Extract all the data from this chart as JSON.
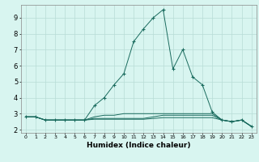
{
  "xlabel": "Humidex (Indice chaleur)",
  "ylabel": "",
  "bg_color": "#d8f5f0",
  "grid_color": "#b8dcd6",
  "line_color": "#1a6b5e",
  "xlim": [
    -0.5,
    23.5
  ],
  "ylim": [
    1.8,
    9.8
  ],
  "yticks": [
    2,
    3,
    4,
    5,
    6,
    7,
    8,
    9
  ],
  "xticks": [
    0,
    1,
    2,
    3,
    4,
    5,
    6,
    7,
    8,
    9,
    10,
    11,
    12,
    13,
    14,
    15,
    16,
    17,
    18,
    19,
    20,
    21,
    22,
    23
  ],
  "xtick_labels": [
    "0",
    "1",
    "2",
    "3",
    "4",
    "5",
    "6",
    "7",
    "8",
    "9",
    "10",
    "11",
    "12",
    "13",
    "14",
    "15",
    "16",
    "17",
    "18",
    "19",
    "20",
    "21",
    "22",
    "23"
  ],
  "series": [
    {
      "x": [
        0,
        1,
        2,
        3,
        4,
        5,
        6,
        7,
        8,
        9,
        10,
        11,
        12,
        13,
        14,
        15,
        16,
        17,
        18,
        19,
        20,
        21,
        22,
        23
      ],
      "y": [
        2.8,
        2.8,
        2.6,
        2.6,
        2.6,
        2.6,
        2.6,
        3.5,
        4.0,
        4.8,
        5.5,
        7.5,
        8.3,
        9.0,
        9.5,
        5.8,
        7.0,
        5.3,
        4.8,
        3.1,
        2.6,
        2.5,
        2.6,
        2.2
      ],
      "marker": true
    },
    {
      "x": [
        0,
        1,
        2,
        3,
        4,
        5,
        6,
        7,
        8,
        9,
        10,
        11,
        12,
        13,
        14,
        15,
        16,
        17,
        18,
        19,
        20,
        21,
        22,
        23
      ],
      "y": [
        2.8,
        2.8,
        2.6,
        2.6,
        2.6,
        2.6,
        2.6,
        2.8,
        2.9,
        2.9,
        3.0,
        3.0,
        3.0,
        3.0,
        3.0,
        3.0,
        3.0,
        3.0,
        3.0,
        3.0,
        2.6,
        2.5,
        2.6,
        2.2
      ],
      "marker": false
    },
    {
      "x": [
        0,
        1,
        2,
        3,
        4,
        5,
        6,
        7,
        8,
        9,
        10,
        11,
        12,
        13,
        14,
        15,
        16,
        17,
        18,
        19,
        20,
        21,
        22,
        23
      ],
      "y": [
        2.8,
        2.8,
        2.6,
        2.6,
        2.6,
        2.6,
        2.6,
        2.7,
        2.7,
        2.7,
        2.7,
        2.7,
        2.7,
        2.8,
        2.9,
        2.9,
        2.9,
        2.9,
        2.9,
        2.9,
        2.6,
        2.5,
        2.6,
        2.2
      ],
      "marker": false
    },
    {
      "x": [
        0,
        1,
        2,
        3,
        4,
        5,
        6,
        7,
        8,
        9,
        10,
        11,
        12,
        13,
        14,
        15,
        16,
        17,
        18,
        19,
        20,
        21,
        22,
        23
      ],
      "y": [
        2.8,
        2.8,
        2.6,
        2.6,
        2.6,
        2.6,
        2.6,
        2.65,
        2.65,
        2.65,
        2.65,
        2.65,
        2.65,
        2.7,
        2.75,
        2.75,
        2.75,
        2.75,
        2.75,
        2.75,
        2.6,
        2.5,
        2.6,
        2.2
      ],
      "marker": false
    }
  ]
}
